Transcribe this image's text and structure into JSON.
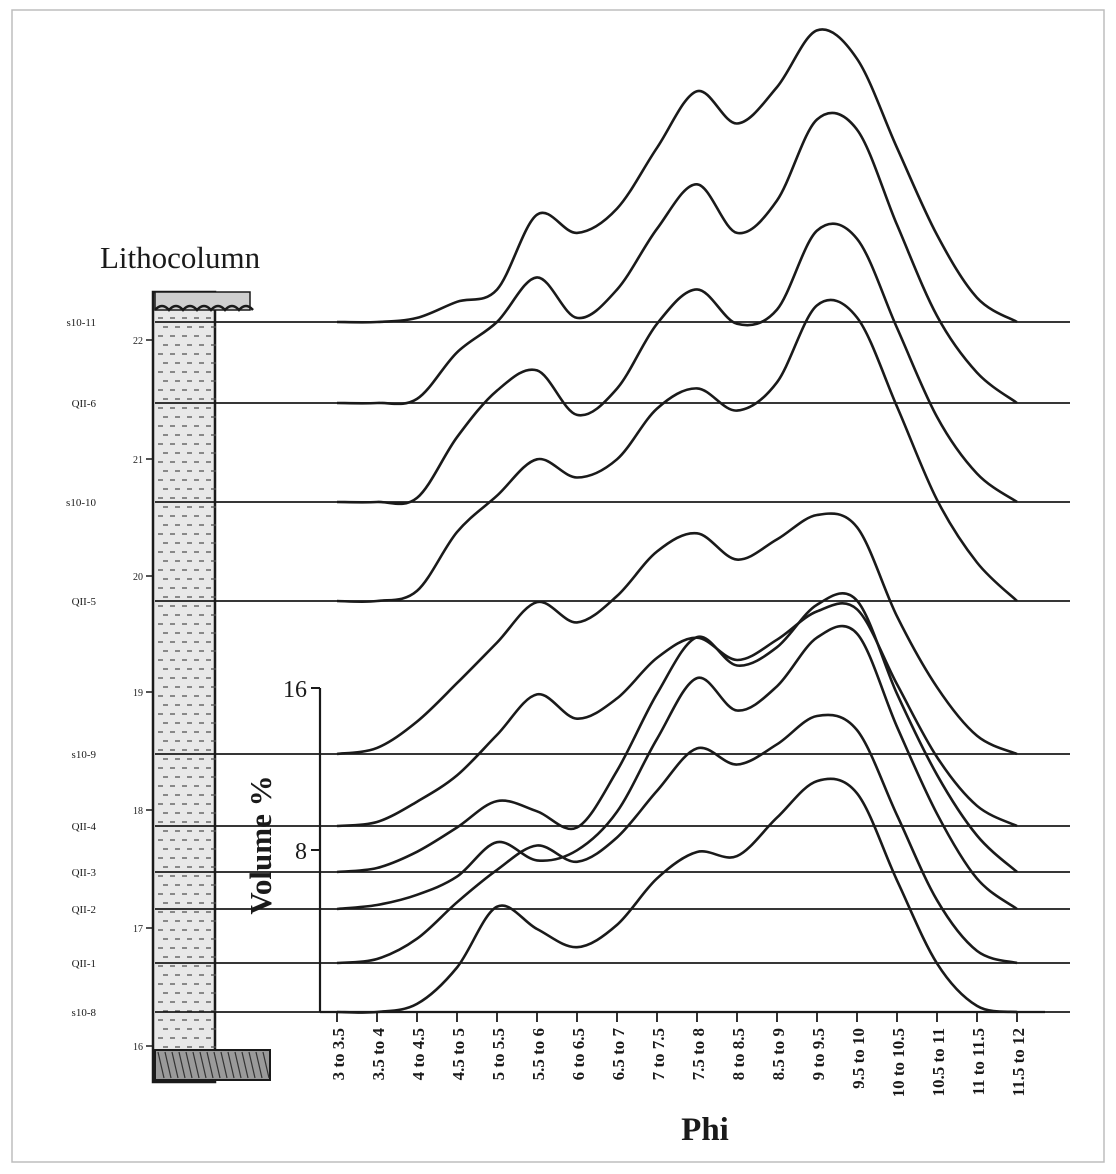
{
  "chart_data": {
    "type": "line",
    "title": "",
    "lithocolumn": {
      "title": "Lithocolumn",
      "depth_ticks": [
        "22",
        "21",
        "20",
        "19",
        "18",
        "17",
        "16"
      ]
    },
    "xlabel": "Phi",
    "ylabel": "Volume %",
    "y_ticks": [
      "8",
      "16"
    ],
    "x_categories": [
      "3 to 3.5",
      "3.5 to 4",
      "4 to 4.5",
      "4.5 to 5",
      "5 to 5.5",
      "5.5 to 6",
      "6 to 6.5",
      "6.5 to 7",
      "7 to 7.5",
      "7.5 to 8",
      "8 to 8.5",
      "8.5 to 9",
      "9 to 9.5",
      "9.5 to 10",
      "10 to 10.5",
      "10.5 to 11",
      "11 to 11.5",
      "11.5 to 12"
    ],
    "grid": false,
    "series": [
      {
        "name": "s10-11",
        "values": [
          0,
          0,
          0.2,
          1,
          1.6,
          5.3,
          4.4,
          5.6,
          8.6,
          11.4,
          9.8,
          11.6,
          14.4,
          13,
          8.6,
          4.3,
          1.2,
          0
        ]
      },
      {
        "name": "QII-6",
        "values": [
          0,
          0,
          0.2,
          2.5,
          4,
          6.2,
          4.2,
          5.6,
          8.6,
          10.8,
          8.4,
          10,
          14,
          13.5,
          8.8,
          4.3,
          1.5,
          0
        ]
      },
      {
        "name": "s10-10",
        "values": [
          0,
          0,
          0.2,
          3.2,
          5.5,
          6.5,
          4.3,
          5.6,
          8.8,
          10.5,
          8.8,
          9.5,
          13.4,
          13,
          8.6,
          4.2,
          1.4,
          0
        ]
      },
      {
        "name": "QII-5",
        "values": [
          0,
          0,
          0.5,
          3.4,
          5.2,
          7,
          6.1,
          7,
          9.5,
          10.5,
          9.4,
          10.8,
          14.6,
          14,
          9.6,
          5,
          1.9,
          0
        ]
      },
      {
        "name": "s10-9",
        "values": [
          0,
          0.3,
          1.6,
          3.5,
          5.5,
          7.5,
          6.5,
          7.8,
          10,
          10.9,
          9.6,
          10.6,
          11.8,
          11.2,
          6.8,
          3.3,
          0.9,
          0
        ]
      },
      {
        "name": "QII-4",
        "values": [
          0,
          0.2,
          1.2,
          2.5,
          4.5,
          6.5,
          5.3,
          6.3,
          8.3,
          9.3,
          8.2,
          9.2,
          10.6,
          10.7,
          7,
          3.4,
          1,
          0
        ]
      },
      {
        "name": "QII-3",
        "values": [
          0,
          0.2,
          1,
          2.2,
          3.5,
          3,
          2.2,
          5,
          8.8,
          11.6,
          10.2,
          11.1,
          13.2,
          13.4,
          8.8,
          4.8,
          1.8,
          0
        ]
      },
      {
        "name": "QII-2",
        "values": [
          0,
          0.2,
          0.7,
          1.6,
          3.3,
          2.4,
          2.9,
          4.8,
          8.4,
          11.4,
          9.8,
          11,
          13.4,
          13.6,
          9,
          4.7,
          1.5,
          0
        ]
      },
      {
        "name": "QII-1",
        "values": [
          0,
          0.2,
          1.2,
          3,
          4.6,
          5.8,
          5,
          6.2,
          8.5,
          10.6,
          9.8,
          10.8,
          12.2,
          11.5,
          7.3,
          3.1,
          0.6,
          0
        ]
      },
      {
        "name": "s10-8",
        "values": [
          0,
          0,
          0.4,
          2.2,
          5.2,
          4.1,
          3.2,
          4.3,
          6.6,
          7.9,
          7.7,
          9.6,
          11.4,
          10.8,
          6.5,
          2.4,
          0.3,
          0
        ]
      }
    ]
  }
}
